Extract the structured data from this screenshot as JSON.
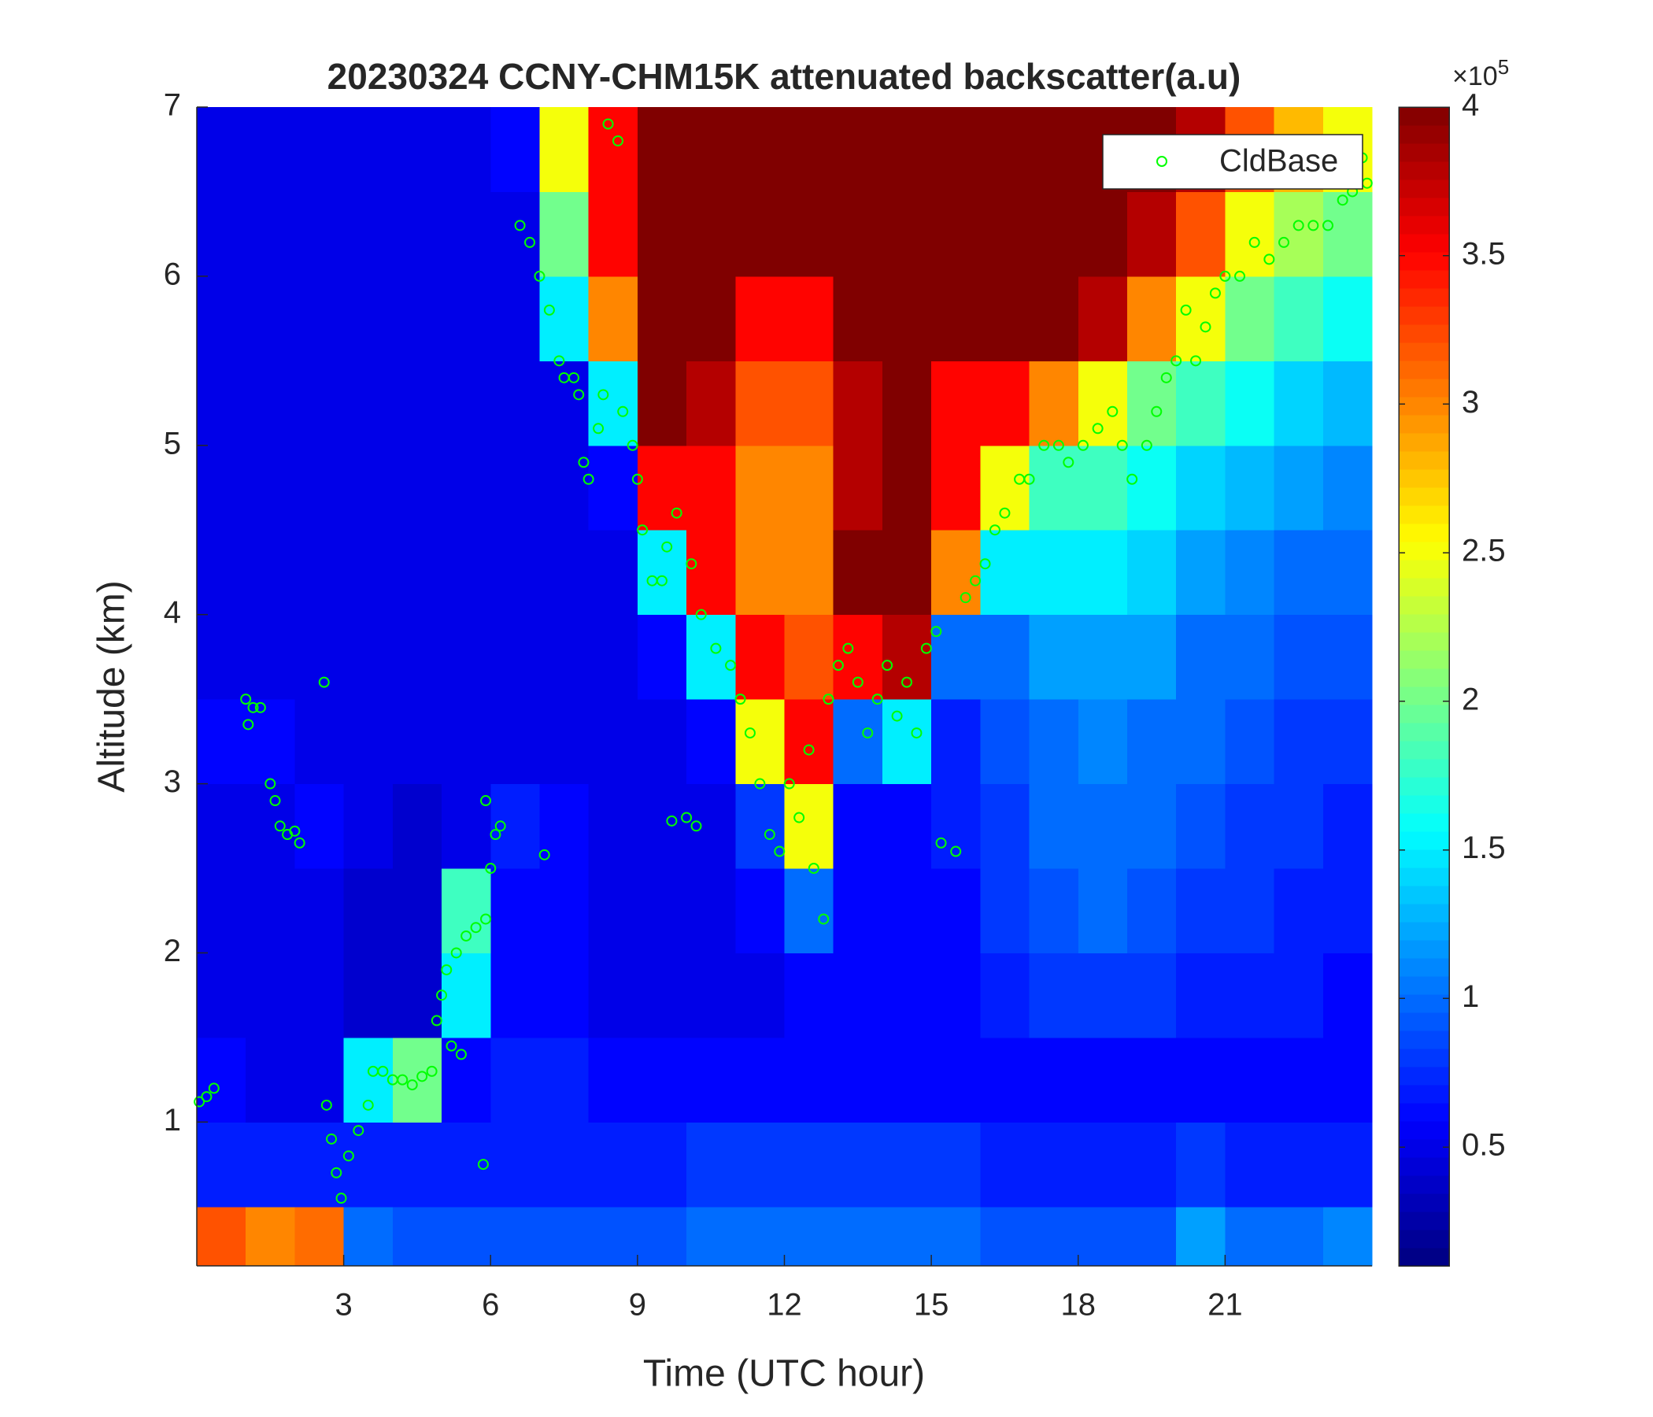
{
  "chart_data": {
    "type": "heatmap",
    "title": "20230324 CCNY-CHM15K attenuated backscatter(a.u)",
    "x_label": "Time (UTC hour)",
    "y_label": "Altitude (km)",
    "xlim": [
      0,
      24
    ],
    "ylim": [
      0.15,
      7
    ],
    "xticks": [
      3,
      6,
      9,
      12,
      15,
      18,
      21
    ],
    "yticks": [
      1,
      2,
      3,
      4,
      5,
      6,
      7
    ],
    "xbins": [
      0,
      1,
      2,
      3,
      4,
      5,
      6,
      7,
      8,
      9,
      10,
      11,
      12,
      13,
      14,
      15,
      16,
      17,
      18,
      19,
      20,
      21,
      22,
      23,
      24
    ],
    "ybins": [
      0.15,
      0.5,
      1,
      1.5,
      2,
      2.5,
      3,
      3.5,
      4,
      4.5,
      5,
      5.5,
      6,
      6.5,
      7
    ],
    "colormap": "jet",
    "values": [
      [
        3.2,
        0.7,
        0.6,
        0.5,
        0.5,
        0.5,
        0.6,
        0.5,
        0.5,
        0.5,
        0.5,
        0.5,
        0.5,
        0.5
      ],
      [
        3.0,
        0.7,
        0.5,
        0.5,
        0.5,
        0.5,
        0.6,
        0.5,
        0.5,
        0.5,
        0.5,
        0.5,
        0.5,
        0.5
      ],
      [
        3.1,
        0.7,
        0.5,
        0.5,
        0.5,
        0.6,
        0.5,
        0.5,
        0.5,
        0.5,
        0.5,
        0.5,
        0.5,
        0.5
      ],
      [
        1.0,
        0.7,
        1.5,
        0.4,
        0.4,
        0.5,
        0.5,
        0.5,
        0.5,
        0.5,
        0.5,
        0.5,
        0.5,
        0.5
      ],
      [
        0.9,
        0.7,
        2.0,
        0.4,
        0.4,
        0.4,
        0.5,
        0.5,
        0.5,
        0.5,
        0.5,
        0.5,
        0.5,
        0.5
      ],
      [
        0.9,
        0.7,
        0.6,
        1.5,
        1.8,
        0.5,
        0.5,
        0.5,
        0.5,
        0.5,
        0.5,
        0.5,
        0.5,
        0.5
      ],
      [
        0.9,
        0.7,
        0.7,
        0.6,
        0.6,
        0.7,
        0.5,
        0.5,
        0.5,
        0.5,
        0.5,
        0.5,
        0.5,
        0.6
      ],
      [
        0.9,
        0.7,
        0.7,
        0.6,
        0.6,
        0.6,
        0.5,
        0.5,
        0.5,
        0.5,
        0.5,
        1.5,
        2.0,
        2.5
      ],
      [
        0.9,
        0.7,
        0.6,
        0.5,
        0.5,
        0.5,
        0.5,
        0.5,
        0.5,
        0.6,
        1.5,
        3.0,
        3.5,
        3.5
      ],
      [
        0.9,
        0.7,
        0.6,
        0.5,
        0.5,
        0.5,
        0.5,
        0.6,
        1.5,
        3.5,
        4.0,
        4.0,
        4.0,
        4.0
      ],
      [
        1.0,
        0.8,
        0.6,
        0.5,
        0.5,
        0.5,
        0.6,
        1.5,
        3.5,
        3.5,
        3.8,
        4.0,
        4.0,
        4.0
      ],
      [
        1.0,
        0.8,
        0.6,
        0.5,
        0.6,
        0.8,
        2.5,
        3.5,
        3.0,
        3.0,
        3.2,
        3.5,
        4.0,
        4.0
      ],
      [
        1.0,
        0.8,
        0.6,
        0.6,
        1.0,
        2.5,
        3.5,
        3.2,
        3.0,
        3.0,
        3.2,
        3.5,
        4.0,
        4.0
      ],
      [
        1.0,
        0.8,
        0.6,
        0.6,
        0.6,
        0.6,
        1.0,
        3.5,
        4.0,
        3.8,
        3.8,
        4.0,
        4.0,
        4.0
      ],
      [
        1.0,
        0.8,
        0.6,
        0.6,
        0.6,
        0.6,
        1.5,
        3.8,
        4.0,
        4.0,
        4.0,
        4.0,
        4.0,
        4.0
      ],
      [
        1.0,
        0.8,
        0.6,
        0.6,
        0.6,
        0.7,
        0.7,
        1.0,
        3.0,
        3.5,
        3.5,
        4.0,
        4.0,
        4.0
      ],
      [
        0.9,
        0.7,
        0.6,
        0.7,
        0.8,
        0.8,
        0.9,
        1.0,
        1.5,
        2.5,
        3.5,
        4.0,
        4.0,
        4.0
      ],
      [
        0.9,
        0.7,
        0.6,
        0.8,
        0.9,
        1.0,
        1.0,
        1.2,
        1.5,
        1.8,
        3.0,
        4.0,
        4.0,
        4.0
      ],
      [
        0.9,
        0.7,
        0.6,
        0.8,
        1.0,
        1.0,
        1.1,
        1.2,
        1.5,
        1.8,
        2.5,
        3.8,
        4.0,
        4.0
      ],
      [
        0.9,
        0.7,
        0.6,
        0.8,
        0.9,
        1.0,
        1.0,
        1.2,
        1.4,
        1.6,
        2.0,
        3.0,
        3.8,
        4.0
      ],
      [
        1.2,
        0.8,
        0.6,
        0.7,
        0.8,
        0.9,
        1.0,
        1.0,
        1.2,
        1.4,
        1.8,
        2.5,
        3.2,
        3.8
      ],
      [
        1.0,
        0.7,
        0.6,
        0.7,
        0.8,
        0.8,
        0.9,
        1.0,
        1.1,
        1.3,
        1.6,
        2.0,
        2.5,
        3.2
      ],
      [
        1.0,
        0.7,
        0.6,
        0.7,
        0.7,
        0.8,
        0.8,
        0.9,
        1.0,
        1.2,
        1.4,
        1.8,
        2.2,
        2.8
      ],
      [
        1.1,
        0.7,
        0.6,
        0.6,
        0.7,
        0.7,
        0.8,
        0.9,
        1.0,
        1.1,
        1.3,
        1.6,
        2.0,
        2.5
      ]
    ],
    "colorbar": {
      "lim": [
        0.1,
        4
      ],
      "ticks": [
        0.5,
        1,
        1.5,
        2,
        2.5,
        3,
        3.5,
        4
      ],
      "multiplier": "×10",
      "exponent": "5"
    },
    "legend": "northeast",
    "series": [
      {
        "name": "CldBase",
        "type": "scatter",
        "color": "#00ff00",
        "x": [
          0.05,
          0.2,
          0.35,
          1.0,
          1.05,
          1.15,
          1.3,
          1.5,
          1.6,
          1.7,
          1.85,
          2.0,
          2.1,
          2.6,
          2.65,
          2.75,
          2.85,
          2.95,
          3.1,
          3.3,
          3.5,
          3.6,
          3.8,
          4.0,
          4.2,
          4.4,
          4.6,
          4.8,
          4.9,
          5.0,
          5.1,
          5.3,
          5.5,
          5.7,
          5.9,
          6.0,
          6.1,
          6.2,
          5.85,
          5.9,
          5.2,
          5.4,
          6.6,
          6.8,
          7.0,
          7.1,
          7.2,
          7.4,
          7.5,
          7.7,
          7.8,
          7.9,
          8.0,
          8.2,
          8.3,
          8.4,
          8.6,
          8.7,
          8.9,
          9.0,
          9.1,
          9.3,
          9.5,
          9.6,
          9.7,
          10.0,
          10.2,
          9.8,
          10.1,
          10.3,
          10.6,
          10.9,
          11.1,
          11.3,
          11.5,
          11.7,
          11.9,
          12.1,
          12.3,
          12.5,
          12.6,
          12.8,
          12.9,
          13.1,
          13.3,
          13.5,
          13.7,
          13.9,
          14.1,
          14.3,
          14.5,
          14.7,
          14.9,
          15.1,
          15.2,
          15.5,
          15.7,
          15.9,
          16.1,
          16.3,
          16.5,
          16.8,
          17.0,
          17.3,
          17.6,
          17.8,
          18.1,
          18.4,
          18.7,
          18.9,
          19.1,
          19.4,
          19.6,
          19.8,
          20.0,
          20.2,
          20.4,
          20.6,
          20.8,
          21.0,
          21.3,
          21.6,
          21.9,
          22.2,
          22.5,
          22.8,
          23.1,
          23.4,
          23.6,
          23.8,
          23.9
        ],
        "y": [
          1.12,
          1.15,
          1.2,
          3.5,
          3.35,
          3.45,
          3.45,
          3.0,
          2.9,
          2.75,
          2.7,
          2.72,
          2.65,
          3.6,
          1.1,
          0.9,
          0.7,
          0.55,
          0.8,
          0.95,
          1.1,
          1.3,
          1.3,
          1.25,
          1.25,
          1.22,
          1.27,
          1.3,
          1.6,
          1.75,
          1.9,
          2.0,
          2.1,
          2.15,
          2.2,
          2.5,
          2.7,
          2.75,
          0.75,
          2.9,
          1.45,
          1.4,
          6.3,
          6.2,
          6.0,
          2.58,
          5.8,
          5.5,
          5.4,
          5.4,
          5.3,
          4.9,
          4.8,
          5.1,
          5.3,
          6.9,
          6.8,
          5.2,
          5.0,
          4.8,
          4.5,
          4.2,
          4.2,
          4.4,
          2.78,
          2.8,
          2.75,
          4.6,
          4.3,
          4.0,
          3.8,
          3.7,
          3.5,
          3.3,
          3.0,
          2.7,
          2.6,
          3.0,
          2.8,
          3.2,
          2.5,
          2.2,
          3.5,
          3.7,
          3.8,
          3.6,
          3.3,
          3.5,
          3.7,
          3.4,
          3.6,
          3.3,
          3.8,
          3.9,
          2.65,
          2.6,
          4.1,
          4.2,
          4.3,
          4.5,
          4.6,
          4.8,
          4.8,
          5.0,
          5.0,
          4.9,
          5.0,
          5.1,
          5.2,
          5.0,
          4.8,
          5.0,
          5.2,
          5.4,
          5.5,
          5.8,
          5.5,
          5.7,
          5.9,
          6.0,
          6.0,
          6.2,
          6.1,
          6.2,
          6.3,
          6.3,
          6.3,
          6.45,
          6.5,
          6.7,
          6.55
        ]
      }
    ]
  }
}
